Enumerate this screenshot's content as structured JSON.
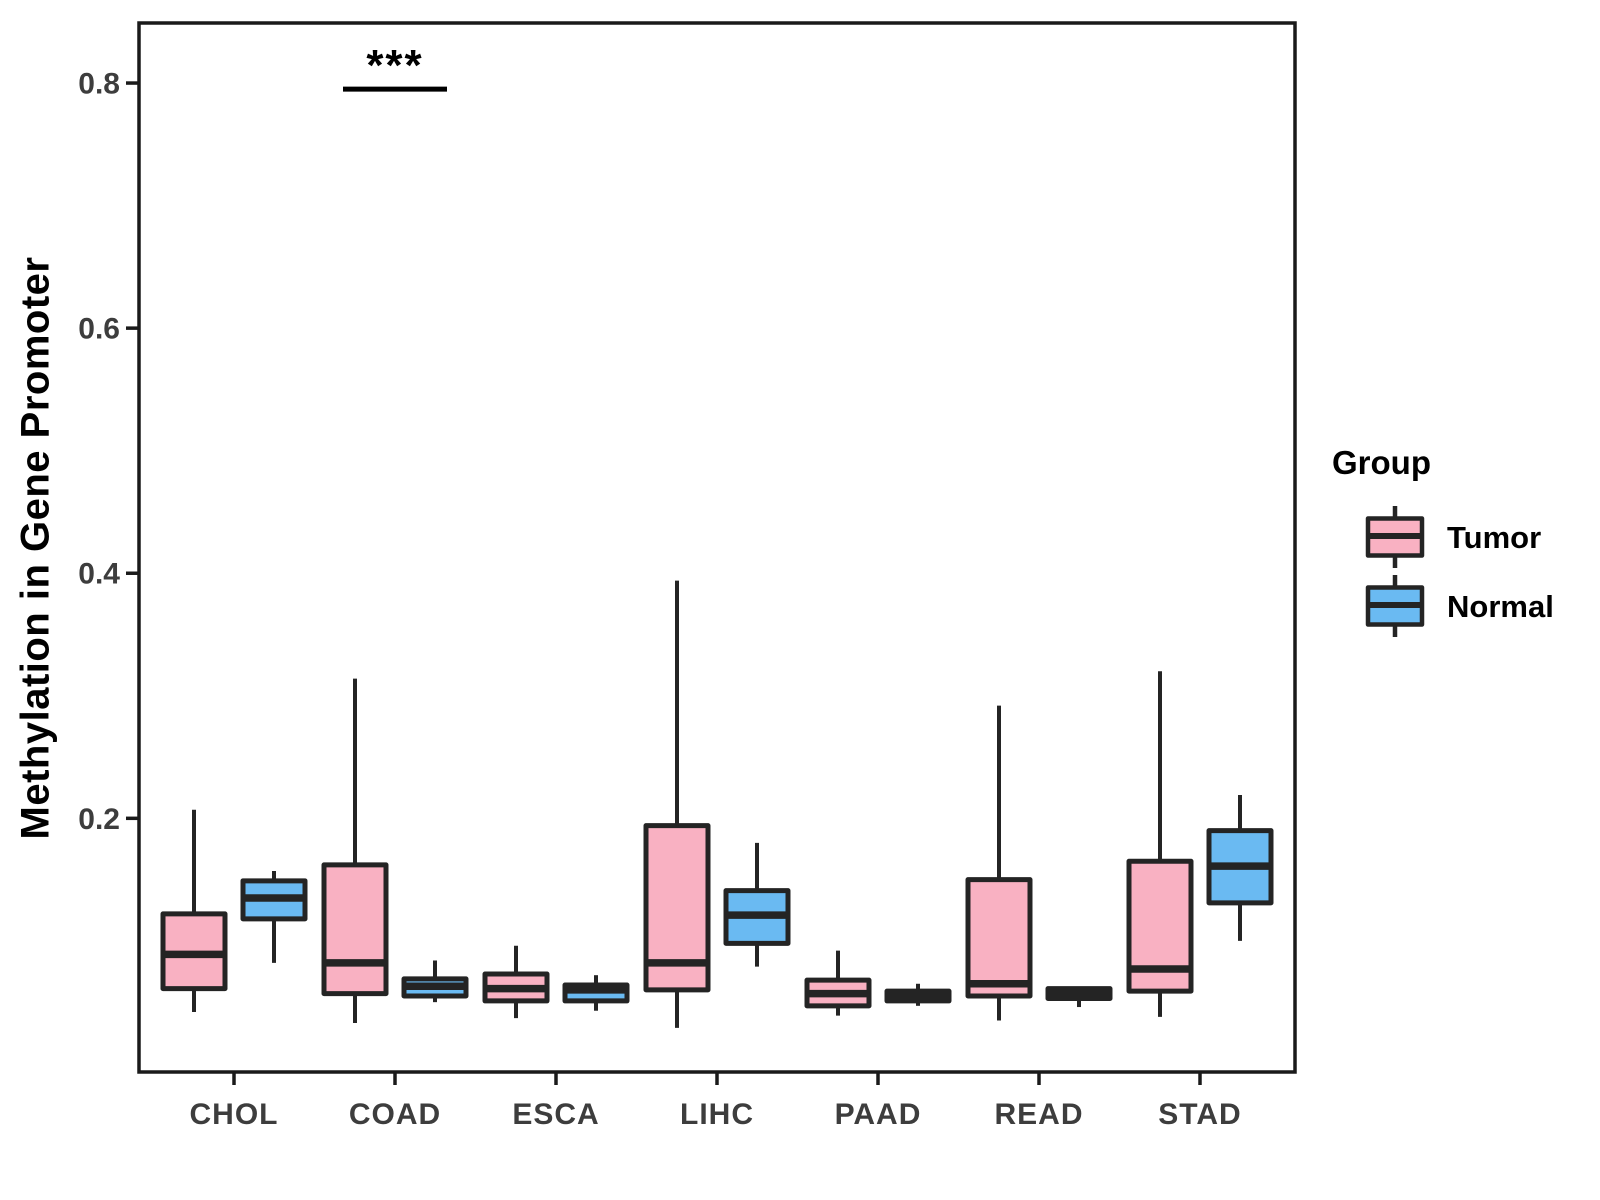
{
  "chart_data": {
    "type": "box",
    "title": "",
    "xlabel": "",
    "ylabel": "Methylation in Gene Promoter",
    "grid": false,
    "legend_title": "Group",
    "legend_position": "right",
    "categories": [
      "CHOL",
      "COAD",
      "ESCA",
      "LIHC",
      "PAAD",
      "READ",
      "STAD"
    ],
    "series": [
      {
        "name": "Tumor",
        "color": "#F9B1C2",
        "boxes": [
          {
            "low": 0.042,
            "q1": 0.061,
            "median": 0.089,
            "q3": 0.122,
            "high": 0.207
          },
          {
            "low": 0.033,
            "q1": 0.057,
            "median": 0.082,
            "q3": 0.162,
            "high": 0.314
          },
          {
            "low": 0.037,
            "q1": 0.051,
            "median": 0.061,
            "q3": 0.073,
            "high": 0.096
          },
          {
            "low": 0.029,
            "q1": 0.06,
            "median": 0.082,
            "q3": 0.194,
            "high": 0.394
          },
          {
            "low": 0.039,
            "q1": 0.047,
            "median": 0.057,
            "q3": 0.068,
            "high": 0.092
          },
          {
            "low": 0.035,
            "q1": 0.055,
            "median": 0.065,
            "q3": 0.15,
            "high": 0.292
          },
          {
            "low": 0.038,
            "q1": 0.059,
            "median": 0.077,
            "q3": 0.165,
            "high": 0.32
          }
        ]
      },
      {
        "name": "Normal",
        "color": "#6ABAF2",
        "boxes": [
          {
            "low": 0.082,
            "q1": 0.118,
            "median": 0.135,
            "q3": 0.149,
            "high": 0.157
          },
          {
            "low": 0.05,
            "q1": 0.055,
            "median": 0.063,
            "q3": 0.069,
            "high": 0.084
          },
          {
            "low": 0.043,
            "q1": 0.051,
            "median": 0.06,
            "q3": 0.064,
            "high": 0.072
          },
          {
            "low": 0.079,
            "q1": 0.098,
            "median": 0.121,
            "q3": 0.141,
            "high": 0.18
          },
          {
            "low": 0.047,
            "q1": 0.051,
            "median": 0.055,
            "q3": 0.059,
            "high": 0.065
          },
          {
            "low": 0.046,
            "q1": 0.053,
            "median": 0.057,
            "q3": 0.061,
            "high": 0.062
          },
          {
            "low": 0.1,
            "q1": 0.131,
            "median": 0.161,
            "q3": 0.19,
            "high": 0.219
          }
        ]
      }
    ],
    "yticks": {
      "values": [
        0.2,
        0.4,
        0.6,
        0.8
      ],
      "labels": [
        "0.2",
        "0.4",
        "0.6",
        "0.8"
      ]
    },
    "ylim": [
      -0.007,
      0.849
    ],
    "significance": {
      "label": "***",
      "category": "COAD",
      "between": [
        "Tumor",
        "Normal"
      ],
      "y": 0.795
    }
  },
  "colors": {
    "box_outline": "#242424",
    "axis_line": "#1A1A1A",
    "axis_text": "#3D3D3D",
    "title_text": "#000000",
    "background": "#FFFFFF"
  }
}
